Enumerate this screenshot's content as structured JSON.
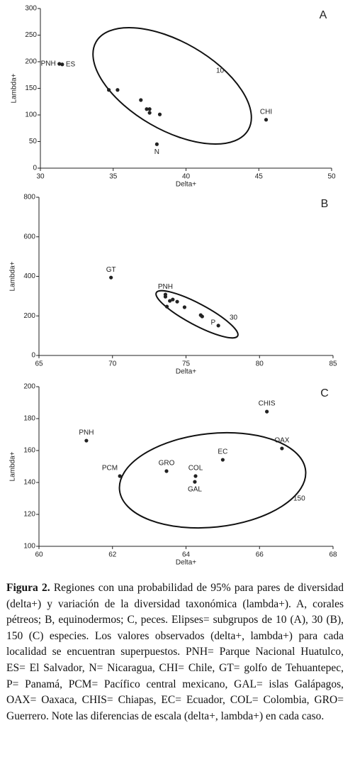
{
  "chart_data": [
    {
      "type": "scatter",
      "title": "A",
      "x_label": "Delta+",
      "y_label": "Lambda+",
      "color": "#222222",
      "x": [
        31.3,
        31.5,
        34.7,
        35.3,
        36.9,
        37.3,
        37.5,
        37.5,
        38.2,
        38.0,
        45.5
      ],
      "values": [
        196,
        195,
        147,
        147,
        128,
        111,
        111,
        104,
        101,
        45,
        91
      ],
      "point_labels": [
        "PNH",
        "ES",
        null,
        null,
        null,
        null,
        null,
        null,
        null,
        "N",
        "CHI"
      ],
      "xlim": [
        30,
        50
      ],
      "xticks": [
        30,
        35,
        40,
        45,
        50
      ],
      "ylim": [
        0,
        300
      ],
      "yticks": [
        0,
        50,
        100,
        150,
        200,
        250,
        300
      ],
      "ellipse_label": "10"
    },
    {
      "type": "scatter",
      "title": "B",
      "x_label": "Delta+",
      "y_label": "Lambda+",
      "color": "#222222",
      "x": [
        69.9,
        73.6,
        73.6,
        73.9,
        74.1,
        74.4,
        73.7,
        74.9,
        76.0,
        76.1,
        77.2
      ],
      "values": [
        394,
        308,
        297,
        276,
        283,
        272,
        247,
        244,
        204,
        197,
        151
      ],
      "point_labels": [
        "GT",
        "PNH",
        null,
        null,
        null,
        null,
        null,
        null,
        null,
        null,
        "P"
      ],
      "xlim": [
        65,
        85
      ],
      "xticks": [
        65,
        70,
        75,
        80,
        85
      ],
      "ylim": [
        0,
        800
      ],
      "yticks": [
        0,
        200,
        400,
        600,
        800
      ],
      "ellipse_label": "30"
    },
    {
      "type": "scatter",
      "title": "C",
      "x_label": "Delta+",
      "y_label": "Lambda+",
      "color": "#222222",
      "x": [
        61.29,
        62.2,
        63.47,
        64.26,
        64.24,
        65.0,
        66.2,
        66.61
      ],
      "values": [
        166.2,
        144,
        147.1,
        144,
        140.4,
        154.2,
        184.4,
        161.3
      ],
      "point_labels": [
        "PNH",
        "PCM",
        "GRO",
        "COL",
        "GAL",
        "EC",
        "CHIS",
        "OAX"
      ],
      "xlim": [
        60,
        68
      ],
      "xticks": [
        60,
        62,
        64,
        66,
        68
      ],
      "ylim": [
        100,
        200
      ],
      "yticks": [
        100,
        120,
        140,
        160,
        180,
        200
      ],
      "ellipse_label": "150"
    }
  ],
  "caption": {
    "label": "Figura 2.",
    "text": "Regiones con una probabilidad de 95% para pares de diversidad (delta+) y variación de la diversidad taxonómica (lambda+). A, corales pétreos; B, equinodermos; C, peces. Elipses= subgrupos de 10 (A), 30 (B), 150 (C) especies. Los valores observados (delta+, lambda+) para cada localidad se encuentran superpuestos. PNH= Parque Nacional Huatulco, ES= El Salvador, N= Nicaragua, CHI= Chile, GT= golfo de Tehuantepec, P= Panamá, PCM= Pacífico central mexicano, GAL= islas Galápagos, OAX= Oaxaca, CHIS= Chiapas, EC= Ecuador, COL= Colombia, GRO= Guerrero. Note las diferencias de escala (delta+, lambda+) en cada caso."
  }
}
